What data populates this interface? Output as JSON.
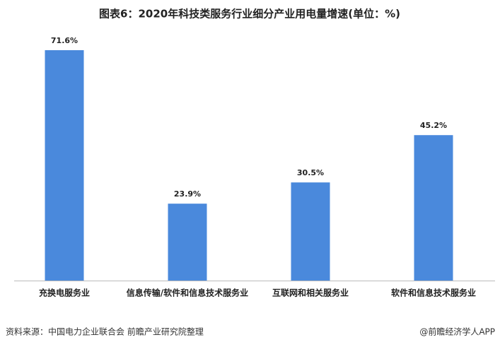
{
  "chart_data": {
    "type": "bar",
    "title": "图表6：2020年科技类服务行业细分产业用电量增速(单位：%)",
    "categories": [
      "充换电服务业",
      "信息传输/软件和信息技术服务业",
      "互联网和相关服务业",
      "软件和信息技术服务业"
    ],
    "values": [
      71.6,
      23.9,
      30.5,
      45.2
    ],
    "value_labels": [
      "71.6%",
      "23.9%",
      "30.5%",
      "45.2%"
    ],
    "color": "#4a89dc",
    "source": "资料来源：中国电力企业联合会 前瞻产业研究院整理",
    "credit": "@前瞻经济学人APP"
  }
}
